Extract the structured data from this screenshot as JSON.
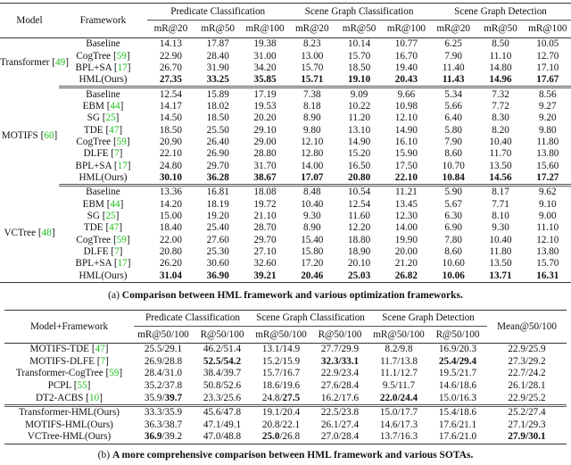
{
  "tableA": {
    "headers": {
      "model": "Model",
      "framework": "Framework",
      "groups": [
        "Predicate Classification",
        "Scene Graph Classification",
        "Scene Graph Detection"
      ],
      "metrics": [
        "mR@20",
        "mR@50",
        "mR@100",
        "mR@20",
        "mR@50",
        "mR@100",
        "mR@20",
        "mR@50",
        "mR@100"
      ]
    },
    "groups": [
      {
        "model": "Transformer",
        "ref": "49",
        "rows": [
          {
            "fw": "Baseline",
            "ref": null,
            "bold": false,
            "vals": [
              "14.13",
              "17.87",
              "19.38",
              "8.23",
              "10.14",
              "10.77",
              "6.25",
              "8.50",
              "10.05"
            ]
          },
          {
            "fw": "CogTree",
            "ref": "59",
            "bold": false,
            "vals": [
              "22.90",
              "28.40",
              "31.00",
              "13.00",
              "15.70",
              "16.70",
              "7.90",
              "11.10",
              "12.70"
            ]
          },
          {
            "fw": "BPL+SA",
            "ref": "17",
            "bold": false,
            "vals": [
              "26.70",
              "31.90",
              "34.20",
              "15.70",
              "18.50",
              "19.40",
              "11.40",
              "14.80",
              "17.10"
            ]
          },
          {
            "fw": "HML(Ours)",
            "ref": null,
            "bold": true,
            "vals": [
              "27.35",
              "33.25",
              "35.85",
              "15.71",
              "19.10",
              "20.43",
              "11.43",
              "14.96",
              "17.67"
            ]
          }
        ]
      },
      {
        "model": "MOTIFS",
        "ref": "60",
        "rows": [
          {
            "fw": "Baseline",
            "ref": null,
            "bold": false,
            "vals": [
              "12.54",
              "15.89",
              "17.19",
              "7.38",
              "9.09",
              "9.66",
              "5.34",
              "7.32",
              "8.56"
            ]
          },
          {
            "fw": "EBM",
            "ref": "44",
            "bold": false,
            "vals": [
              "14.17",
              "18.02",
              "19.53",
              "8.18",
              "10.22",
              "10.98",
              "5.66",
              "7.72",
              "9.27"
            ]
          },
          {
            "fw": "SG",
            "ref": "25",
            "bold": false,
            "vals": [
              "14.50",
              "18.50",
              "20.20",
              "8.90",
              "11.20",
              "12.10",
              "6.40",
              "8.30",
              "9.20"
            ]
          },
          {
            "fw": "TDE",
            "ref": "47",
            "bold": false,
            "vals": [
              "18.50",
              "25.50",
              "29.10",
              "9.80",
              "13.10",
              "14.90",
              "5.80",
              "8.20",
              "9.80"
            ]
          },
          {
            "fw": "CogTree",
            "ref": "59",
            "bold": false,
            "vals": [
              "20.90",
              "26.40",
              "29.00",
              "12.10",
              "14.90",
              "16.10",
              "7.90",
              "10.40",
              "11.80"
            ]
          },
          {
            "fw": "DLFE",
            "ref": "7",
            "bold": false,
            "vals": [
              "22.10",
              "26.90",
              "28.80",
              "12.80",
              "15.20",
              "15.90",
              "8.60",
              "11.70",
              "13.80"
            ]
          },
          {
            "fw": "BPL+SA",
            "ref": "17",
            "bold": false,
            "vals": [
              "24.80",
              "29.70",
              "31.70",
              "14.00",
              "16.50",
              "17.50",
              "10.70",
              "13.50",
              "15.60"
            ]
          },
          {
            "fw": "HML(Ours)",
            "ref": null,
            "bold": true,
            "vals": [
              "30.10",
              "36.28",
              "38.67",
              "17.07",
              "20.80",
              "22.10",
              "10.84",
              "14.56",
              "17.27"
            ]
          }
        ]
      },
      {
        "model": "VCTree",
        "ref": "48",
        "rows": [
          {
            "fw": "Baseline",
            "ref": null,
            "bold": false,
            "vals": [
              "13.36",
              "16.81",
              "18.08",
              "8.48",
              "10.54",
              "11.21",
              "5.90",
              "8.17",
              "9.62"
            ]
          },
          {
            "fw": "EBM",
            "ref": "44",
            "bold": false,
            "vals": [
              "14.20",
              "18.19",
              "19.72",
              "10.40",
              "12.54",
              "13.45",
              "5.67",
              "7.71",
              "9.10"
            ]
          },
          {
            "fw": "SG",
            "ref": "25",
            "bold": false,
            "vals": [
              "15.00",
              "19.20",
              "21.10",
              "9.30",
              "11.60",
              "12.30",
              "6.30",
              "8.10",
              "9.00"
            ]
          },
          {
            "fw": "TDE",
            "ref": "47",
            "bold": false,
            "vals": [
              "18.40",
              "25.40",
              "28.70",
              "8.90",
              "12.20",
              "14.00",
              "6.90",
              "9.30",
              "11.10"
            ]
          },
          {
            "fw": "CogTree",
            "ref": "59",
            "bold": false,
            "vals": [
              "22.00",
              "27.60",
              "29.70",
              "15.40",
              "18.80",
              "19.90",
              "7.80",
              "10.40",
              "12.10"
            ]
          },
          {
            "fw": "DLFE",
            "ref": "7",
            "bold": false,
            "vals": [
              "20.80",
              "25.30",
              "27.10",
              "15.80",
              "18.90",
              "20.00",
              "8.60",
              "11.80",
              "13.80"
            ]
          },
          {
            "fw": "BPL+SA",
            "ref": "17",
            "bold": false,
            "vals": [
              "26.20",
              "30.60",
              "32.60",
              "17.20",
              "20.10",
              "21.20",
              "10.60",
              "13.50",
              "15.70"
            ]
          },
          {
            "fw": "HML(Ours)",
            "ref": null,
            "bold": true,
            "vals": [
              "31.04",
              "36.90",
              "39.21",
              "20.46",
              "25.03",
              "26.82",
              "10.06",
              "13.71",
              "16.31"
            ]
          }
        ]
      }
    ],
    "caption_prefix": "(a) ",
    "caption": "Comparison between HML framework and various optimization frameworks."
  },
  "tableB": {
    "headers": {
      "model": "Model+Framework",
      "groups": [
        "Predicate Classification",
        "Scene Graph Classification",
        "Scene Graph Detection"
      ],
      "metrics": [
        "mR@50/100",
        "R@50/100",
        "mR@50/100",
        "R@50/100",
        "mR@50/100",
        "R@50/100"
      ],
      "mean": "Mean@50/100"
    },
    "sections": [
      [
        {
          "name": "MOTIFS-TDE",
          "ref": "47",
          "cells": [
            [
              {
                "t": "25.5/29.1"
              }
            ],
            [
              {
                "t": "46.2/51.4"
              }
            ],
            [
              {
                "t": "13.1/14.9"
              }
            ],
            [
              {
                "t": "27.7/29.9"
              }
            ],
            [
              {
                "t": "8.2/9.8"
              }
            ],
            [
              {
                "t": "16.9/20.3"
              }
            ],
            [
              {
                "t": "22.9/25.9"
              }
            ]
          ]
        },
        {
          "name": "MOTIFS-DLFE",
          "ref": "7",
          "cells": [
            [
              {
                "t": "26.9/28.8"
              }
            ],
            [
              {
                "t": "52.5/54.2",
                "b": true
              }
            ],
            [
              {
                "t": "15.2/15.9"
              }
            ],
            [
              {
                "t": "32.3/33.1",
                "b": true
              }
            ],
            [
              {
                "t": "11.7/13.8"
              }
            ],
            [
              {
                "t": "25.4/29.4",
                "b": true
              }
            ],
            [
              {
                "t": "27.3/29.2"
              }
            ]
          ]
        },
        {
          "name": "Transformer-CogTree",
          "ref": "59",
          "cells": [
            [
              {
                "t": "28.4/31.0"
              }
            ],
            [
              {
                "t": "38.4/39.7"
              }
            ],
            [
              {
                "t": "15.7/16.7"
              }
            ],
            [
              {
                "t": "22.9/23.4"
              }
            ],
            [
              {
                "t": "11.1/12.7"
              }
            ],
            [
              {
                "t": "19.5/21.7"
              }
            ],
            [
              {
                "t": "22.7/24.2"
              }
            ]
          ]
        },
        {
          "name": "PCPL",
          "ref": "55",
          "cells": [
            [
              {
                "t": "35.2/37.8"
              }
            ],
            [
              {
                "t": "50.8/52.6"
              }
            ],
            [
              {
                "t": "18.6/19.6"
              }
            ],
            [
              {
                "t": "27.6/28.4"
              }
            ],
            [
              {
                "t": "9.5/11.7"
              }
            ],
            [
              {
                "t": "14.6/18.6"
              }
            ],
            [
              {
                "t": "26.1/28.1"
              }
            ]
          ]
        },
        {
          "name": "DT2-ACBS",
          "ref": "10",
          "cells": [
            [
              {
                "t": "35.9/"
              },
              {
                "t": "39.7",
                "b": true
              }
            ],
            [
              {
                "t": "23.3/25.6"
              }
            ],
            [
              {
                "t": "24.8/"
              },
              {
                "t": "27.5",
                "b": true
              }
            ],
            [
              {
                "t": "16.2/17.6"
              }
            ],
            [
              {
                "t": "22.0/24.4",
                "b": true
              }
            ],
            [
              {
                "t": "15.0/16.3"
              }
            ],
            [
              {
                "t": "22.9/25.2"
              }
            ]
          ]
        }
      ],
      [
        {
          "name": "Transformer-HML(Ours)",
          "ref": null,
          "cells": [
            [
              {
                "t": "33.3/35.9"
              }
            ],
            [
              {
                "t": "45.6/47.8"
              }
            ],
            [
              {
                "t": "19.1/20.4"
              }
            ],
            [
              {
                "t": "22.5/23.8"
              }
            ],
            [
              {
                "t": "15.0/17.7"
              }
            ],
            [
              {
                "t": "15.4/18.6"
              }
            ],
            [
              {
                "t": "25.2/27.4"
              }
            ]
          ]
        },
        {
          "name": "MOTIFS-HML(Ours)",
          "ref": null,
          "cells": [
            [
              {
                "t": "36.3/38.7"
              }
            ],
            [
              {
                "t": "47.1/49.1"
              }
            ],
            [
              {
                "t": "20.8/22.1"
              }
            ],
            [
              {
                "t": "26.1/27.4"
              }
            ],
            [
              {
                "t": "14.6/17.3"
              }
            ],
            [
              {
                "t": "17.6/21.1"
              }
            ],
            [
              {
                "t": "27.1/29.3"
              }
            ]
          ]
        },
        {
          "name": "VCTree-HML(Ours)",
          "ref": null,
          "cells": [
            [
              {
                "t": "36.9",
                "b": true
              },
              {
                "t": "/39.2"
              }
            ],
            [
              {
                "t": "47.0/48.8"
              }
            ],
            [
              {
                "t": "25.0",
                "b": true
              },
              {
                "t": "/26.8"
              }
            ],
            [
              {
                "t": "27.0/28.4"
              }
            ],
            [
              {
                "t": "13.7/16.3"
              }
            ],
            [
              {
                "t": "17.6/21.0"
              }
            ],
            [
              {
                "t": "27.9/30.1",
                "b": true
              }
            ]
          ]
        }
      ]
    ],
    "caption_prefix": "(b) ",
    "caption": "A more comprehensive comparison between HML framework and various SOTAs."
  }
}
